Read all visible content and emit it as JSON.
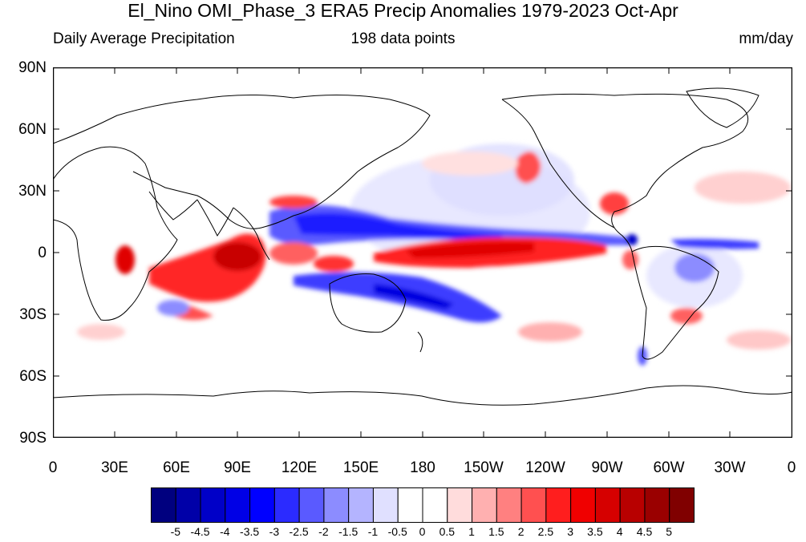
{
  "title": "El_Nino OMI_Phase_3 ERA5 Precip Anomalies 1979-2023 Oct-Apr",
  "subtitle_left": "Daily Average Precipitation",
  "subtitle_center": "198 data points",
  "subtitle_right": "mm/day",
  "lat_labels": [
    "90N",
    "60N",
    "30N",
    "0",
    "30S",
    "60S",
    "90S"
  ],
  "lon_labels": [
    "0",
    "30E",
    "60E",
    "90E",
    "120E",
    "150E",
    "180",
    "150W",
    "120W",
    "90W",
    "60W",
    "30W",
    "0"
  ],
  "colorbar": {
    "labels": [
      "-5",
      "-4.5",
      "-4",
      "-3.5",
      "-3",
      "-2.5",
      "-2",
      "-1.5",
      "-1",
      "-0.5",
      "0",
      "0.5",
      "1",
      "1.5",
      "2",
      "2.5",
      "3",
      "3.5",
      "4",
      "4.5",
      "5"
    ],
    "colors": [
      "#00007f",
      "#0000a8",
      "#0000c8",
      "#0000e6",
      "#0000ff",
      "#2b2bff",
      "#5a5aff",
      "#8c8cff",
      "#b4b4ff",
      "#e0e0ff",
      "#ffffff",
      "#ffffff",
      "#ffdcdc",
      "#ffb0b0",
      "#ff8080",
      "#ff5050",
      "#ff1e1e",
      "#f00000",
      "#d60000",
      "#b80000",
      "#9a0000",
      "#800000"
    ]
  }
}
